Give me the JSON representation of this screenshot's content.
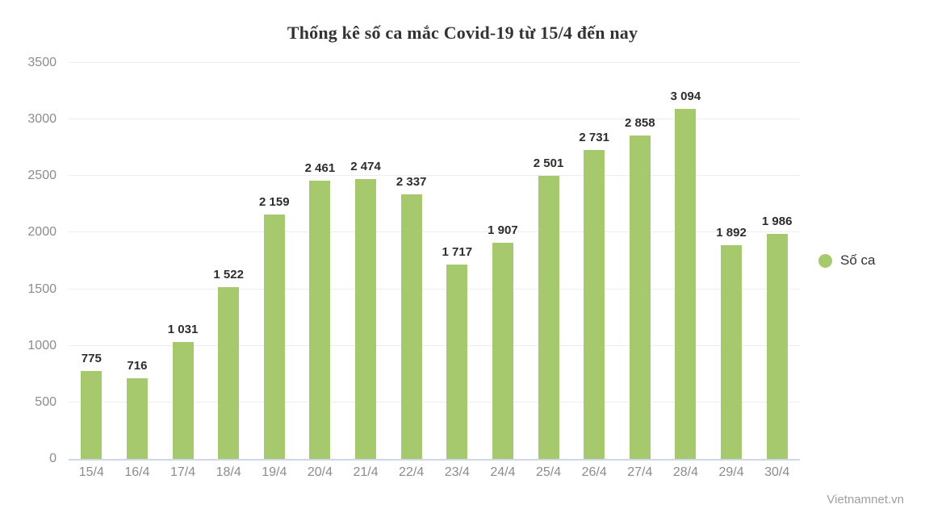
{
  "header": {
    "title": "Thống kê số ca mắc Covid-19 từ 15/4 đến nay"
  },
  "legend": {
    "label": "Số ca",
    "dot_color": "#a6c96d"
  },
  "watermark": "Vietnamnet.vn",
  "colors": {
    "bar": "#a6c96d",
    "gridline": "#ededed",
    "baseline": "#ccd8ec",
    "axis_text": "#8c8c8c",
    "value_text": "#2d2d2d",
    "title_text": "#333333",
    "watermark_text": "#9f9f9f"
  },
  "chart_data": {
    "type": "bar",
    "title": "Thống kê số ca mắc Covid-19 từ 15/4 đến nay",
    "categories": [
      "15/4",
      "16/4",
      "17/4",
      "18/4",
      "19/4",
      "20/4",
      "21/4",
      "22/4",
      "23/4",
      "24/4",
      "25/4",
      "26/4",
      "27/4",
      "28/4",
      "29/4",
      "30/4"
    ],
    "series": [
      {
        "name": "Số ca",
        "values": [
          775,
          716,
          1031,
          1522,
          2159,
          2461,
          2474,
          2337,
          1717,
          1907,
          2501,
          2731,
          2858,
          3094,
          1892,
          1986
        ]
      }
    ],
    "data_labels": [
      "775",
      "716",
      "1 031",
      "1 522",
      "2 159",
      "2 461",
      "2 474",
      "2 337",
      "1 717",
      "1 907",
      "2 501",
      "2 731",
      "2 858",
      "3 094",
      "1 892",
      "1 986"
    ],
    "xlabel": "",
    "ylabel": "",
    "ylim": [
      0,
      3500
    ],
    "yticks": [
      0,
      500,
      1000,
      1500,
      2000,
      2500,
      3000,
      3500
    ],
    "grid": true,
    "legend_position": "right"
  }
}
